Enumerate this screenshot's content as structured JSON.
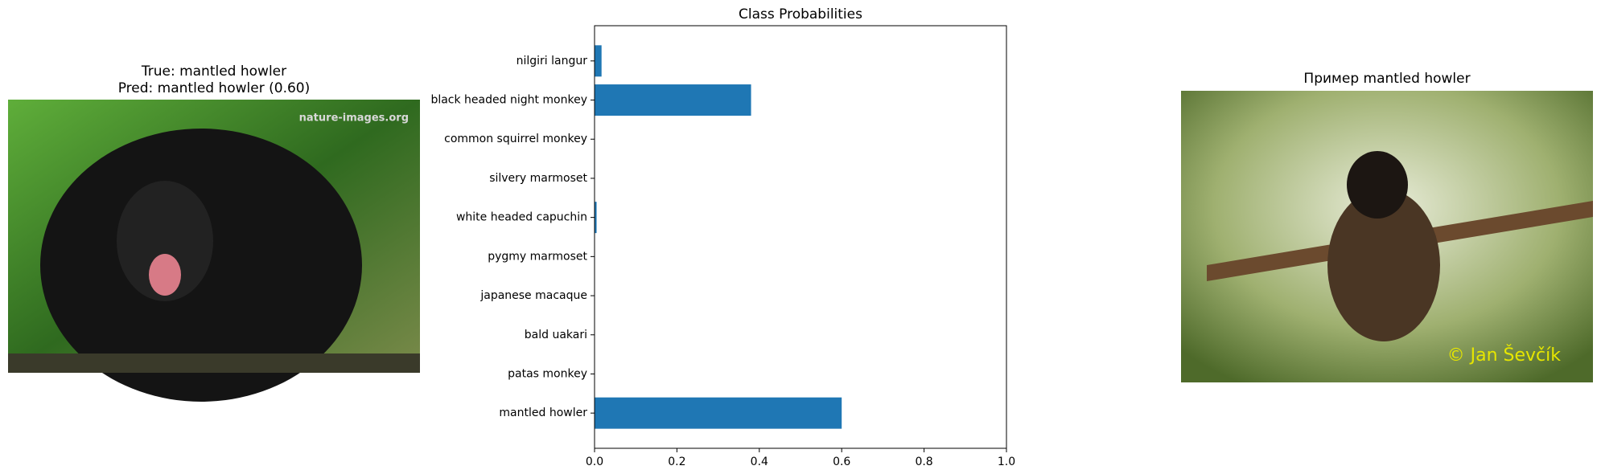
{
  "left_panel": {
    "title_lines": [
      "True: mantled howler",
      "Pred: mantled howler (0.60)"
    ],
    "watermark": "nature-images.org"
  },
  "chart_data": {
    "type": "barh",
    "title": "Class Probabilities",
    "categories": [
      "mantled howler",
      "patas monkey",
      "bald uakari",
      "japanese macaque",
      "pygmy marmoset",
      "white headed capuchin",
      "silvery marmoset",
      "common squirrel monkey",
      "black headed night monkey",
      "nilgiri langur"
    ],
    "values": [
      0.6,
      0,
      0,
      0,
      0,
      0.005,
      0,
      0,
      0.38,
      0.017
    ],
    "color": "#1f77b4",
    "xlim": [
      0,
      1
    ],
    "xticks": [
      {
        "value": 0,
        "label": "0.0"
      },
      {
        "value": 0.2,
        "label": "0.2"
      },
      {
        "value": 0.4,
        "label": "0.4"
      },
      {
        "value": 0.6,
        "label": "0.6"
      },
      {
        "value": 0.8,
        "label": "0.8"
      },
      {
        "value": 1,
        "label": "1.0"
      }
    ],
    "grid": false
  },
  "right_panel": {
    "title": "Пример mantled howler",
    "watermark": "© Jan Ševčík"
  }
}
